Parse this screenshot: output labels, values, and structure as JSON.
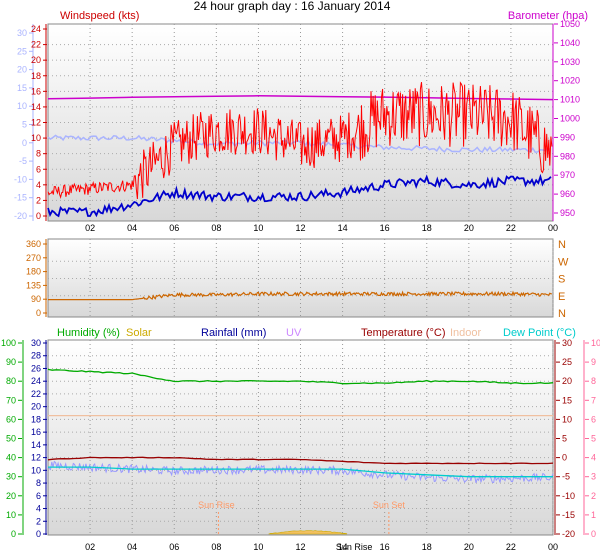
{
  "title": "24 hour graph day : 16 January 2014",
  "colors": {
    "windspeed": "#cc0000",
    "gust": "#ff0000",
    "wind_avg": "#0000cc",
    "baro": "#cc00cc",
    "wind_bg": "#aab4ff",
    "winddir": "#cc6600",
    "humidity": "#00aa00",
    "solar": "#ccaa00",
    "rainfall": "#000099",
    "uv": "#cc88ff",
    "temperature": "#990000",
    "indoor": "#f0c0a0",
    "dewpoint": "#00cccc",
    "apparent": "#9999ff"
  },
  "chart_data": [
    {
      "type": "line",
      "panel": "wind",
      "left_label": "Windspeed (kts)",
      "right_label": "Barometer (hpa)",
      "x_ticks": [
        "02",
        "04",
        "06",
        "08",
        "10",
        "12",
        "14",
        "16",
        "18",
        "20",
        "22",
        "00"
      ],
      "left_outer_ticks": [
        "30",
        "25",
        "20",
        "15",
        "10",
        "5",
        "0",
        "-5",
        "-10",
        "-15",
        "-20"
      ],
      "left_ticks": [
        "24",
        "22",
        "20",
        "18",
        "16",
        "14",
        "12",
        "10",
        "8",
        "6",
        "4",
        "2",
        "0"
      ],
      "right_ticks": [
        "1050",
        "1040",
        "1030",
        "1020",
        "1010",
        "1000",
        "990",
        "980",
        "970",
        "960",
        "950"
      ],
      "ylim": [
        0,
        25
      ],
      "baro_ylim": [
        945,
        1052
      ],
      "x": [
        0,
        2,
        4,
        6,
        8,
        10,
        12,
        14,
        16,
        18,
        20,
        22,
        24
      ],
      "series": [
        {
          "name": "Barometer",
          "values": [
            1010.5,
            1010.8,
            1011.2,
            1011.5,
            1011.8,
            1012.0,
            1011.8,
            1011.5,
            1011.3,
            1011.0,
            1010.6,
            1010.3,
            1010.0
          ]
        },
        {
          "name": "Gust",
          "values": [
            3,
            3.5,
            4,
            9,
            11,
            11,
            9,
            10,
            13,
            13,
            13,
            12.5,
            8
          ]
        },
        {
          "name": "Average",
          "values": [
            0.5,
            0.5,
            1.5,
            3,
            2.5,
            2.5,
            2.5,
            3,
            4,
            4.5,
            4,
            4.5,
            4.5
          ]
        }
      ]
    },
    {
      "type": "line",
      "panel": "direction",
      "left_ticks": [
        "360",
        "270",
        "180",
        "135",
        "90",
        "0"
      ],
      "right_ticks": [
        "N",
        "W",
        "S",
        "E",
        "N"
      ],
      "ylim": [
        0,
        360
      ],
      "x": [
        0,
        2,
        4,
        6,
        8,
        10,
        12,
        14,
        16,
        18,
        20,
        22,
        24
      ],
      "series": [
        {
          "name": "Direction",
          "values": [
            70,
            70,
            70,
            95,
            95,
            100,
            100,
            100,
            100,
            100,
            100,
            100,
            95
          ]
        }
      ]
    },
    {
      "type": "line",
      "panel": "temperature",
      "legend": [
        "Humidity (%)",
        "Solar",
        "Rainfall (mm)",
        "UV",
        "Temperature (°C)",
        "Indoor",
        "Dew Point (°C)"
      ],
      "sun_rise_label": "Sun Rise",
      "sun_set_label": "Sun Set",
      "x_ticks": [
        "02",
        "04",
        "06",
        "08",
        "10",
        "12",
        "14",
        "16",
        "18",
        "20",
        "22",
        "00"
      ],
      "x_tick_extra": "Sun Rise",
      "humidity_ticks": [
        "100",
        "90",
        "80",
        "70",
        "60",
        "50",
        "40",
        "30",
        "20",
        "10",
        "0"
      ],
      "rain_ticks": [
        "30",
        "28",
        "26",
        "24",
        "22",
        "20",
        "18",
        "16",
        "14",
        "12",
        "10",
        "8",
        "6",
        "4",
        "2",
        "0"
      ],
      "temp_ticks": [
        "30",
        "25",
        "20",
        "15",
        "10",
        "5",
        "0",
        "-5",
        "-10",
        "-15",
        "-20"
      ],
      "uv_ticks": [
        "10",
        "9",
        "8",
        "7",
        "6",
        "5",
        "4",
        "3",
        "2",
        "1",
        "0"
      ],
      "humidity_ylim": [
        0,
        100
      ],
      "temp_ylim": [
        -20,
        30
      ],
      "x": [
        0,
        2,
        4,
        6,
        8,
        10,
        12,
        14,
        16,
        18,
        20,
        22,
        24
      ],
      "series": [
        {
          "name": "Humidity",
          "values": [
            86,
            85,
            84,
            80,
            80,
            80,
            80,
            79,
            79,
            80,
            80,
            79,
            79
          ]
        },
        {
          "name": "Indoor",
          "values": [
            11,
            11,
            11,
            11,
            11,
            11,
            11,
            11,
            11,
            11,
            11,
            11,
            11
          ]
        },
        {
          "name": "Temperature",
          "values": [
            -0.5,
            0,
            0,
            0,
            -0.5,
            -0.5,
            -0.5,
            -1,
            -1.5,
            -1.5,
            -1.5,
            -1.5,
            -1.5
          ]
        },
        {
          "name": "Dew Point",
          "values": [
            -2.5,
            -2.5,
            -3,
            -3,
            -3,
            -3,
            -3,
            -3,
            -4,
            -4.5,
            -5,
            -5,
            -5
          ]
        },
        {
          "name": "Solar",
          "values": [
            0,
            0,
            0,
            0,
            0,
            0.5,
            0.8,
            0.5,
            0,
            0,
            0,
            0,
            0
          ]
        }
      ]
    }
  ]
}
